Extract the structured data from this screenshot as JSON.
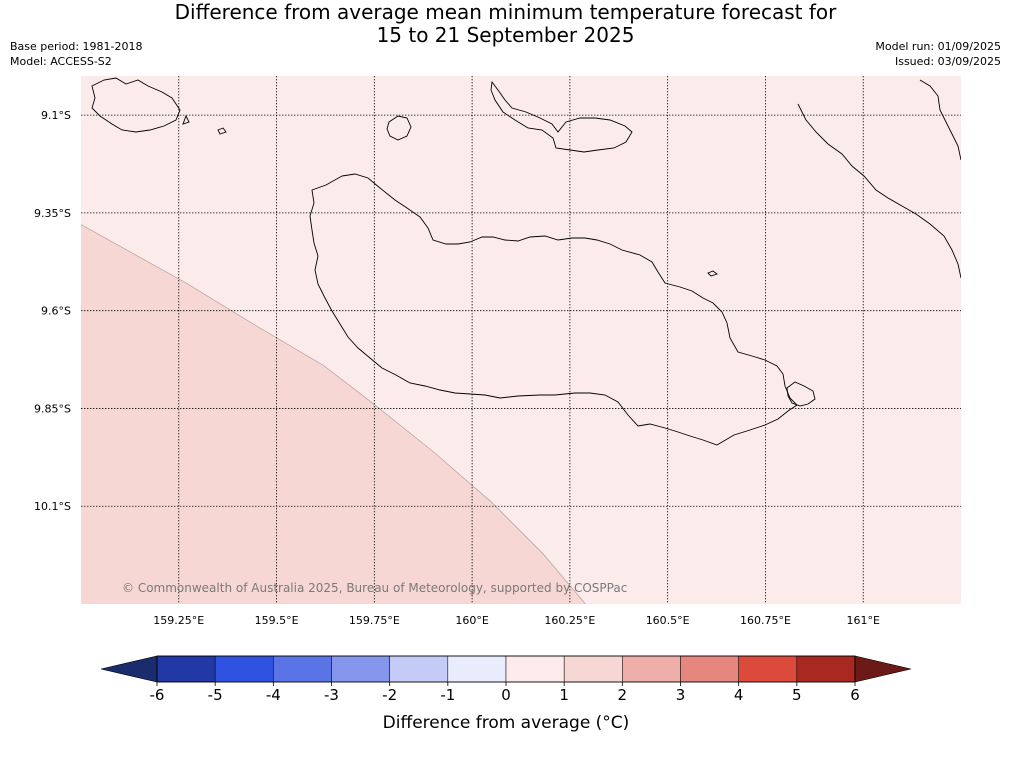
{
  "title": {
    "line1": "Difference from average mean minimum temperature forecast for",
    "line2": "15 to 21 September 2025"
  },
  "meta": {
    "base_period": "Base period: 1981-2018",
    "model": "Model: ACCESS-S2",
    "model_run": "Model run: 01/09/2025",
    "issued": "Issued: 03/09/2025"
  },
  "map": {
    "lon_range": [
      159.0,
      161.25
    ],
    "lat_range": [
      -10.35,
      -9.0
    ],
    "lon_ticks": [
      {
        "value": 159.25,
        "label": "159.25°E"
      },
      {
        "value": 159.5,
        "label": "159.5°E"
      },
      {
        "value": 159.75,
        "label": "159.75°E"
      },
      {
        "value": 160.0,
        "label": "160°E"
      },
      {
        "value": 160.25,
        "label": "160.25°E"
      },
      {
        "value": 160.5,
        "label": "160.5°E"
      },
      {
        "value": 160.75,
        "label": "160.75°E"
      },
      {
        "value": 161.0,
        "label": "161°E"
      }
    ],
    "lat_ticks": [
      {
        "value": -9.1,
        "label": "9.1°S"
      },
      {
        "value": -9.35,
        "label": "9.35°S"
      },
      {
        "value": -9.6,
        "label": "9.6°S"
      },
      {
        "value": -9.85,
        "label": "9.85°S"
      },
      {
        "value": -10.1,
        "label": "10.1°S"
      }
    ],
    "background_fill": "#fbebea",
    "band_1_to_2_fill": "#f6d7d4",
    "band_1_to_2_boundary": [
      [
        159.0,
        -9.38
      ],
      [
        159.27,
        -9.53
      ],
      [
        159.45,
        -9.64
      ],
      [
        159.62,
        -9.74
      ],
      [
        159.75,
        -9.84
      ],
      [
        159.9,
        -9.96
      ],
      [
        160.05,
        -10.09
      ],
      [
        160.18,
        -10.22
      ],
      [
        160.29,
        -10.35
      ]
    ],
    "coastline_color": "#000000",
    "copyright": "© Commonwealth of Australia 2025, Bureau of Meteorology, supported by COSPPac"
  },
  "colorbar": {
    "title": "Difference from average (°C)",
    "labels": [
      "-6",
      "-5",
      "-4",
      "-3",
      "-2",
      "-1",
      "0",
      "1",
      "2",
      "3",
      "4",
      "5",
      "6"
    ],
    "under_color": "#1a2b6e",
    "over_color": "#6b1a18",
    "colors": [
      "#2238a4",
      "#2f52e0",
      "#5a74e6",
      "#8597ec",
      "#c3cbf6",
      "#e9ecfc",
      "#fbebea",
      "#f6d7d4",
      "#eeafab",
      "#e6877f",
      "#dc4a3c",
      "#a8291f"
    ]
  }
}
